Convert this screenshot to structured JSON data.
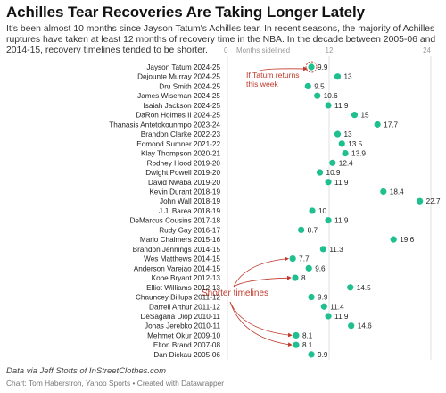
{
  "header": {
    "title": "Achilles Tear Recoveries Are Taking Longer Lately",
    "subtitle": "It's been almost 10 months since Jayson Tatum's Achilles tear. In recent seasons, the majority of Achilles ruptures have taken at least 12 months of recovery time in the NBA. In the decade between 2005-06 and 2014-15, recovery timelines tended to be shorter."
  },
  "footer": {
    "source": "Data via Jeff Stotts of InStreetClothes.com",
    "credit": "Chart: Tom Haberstroh, Yahoo Sports • Created with Datawrapper"
  },
  "colors": {
    "dot": "#1fbf8f",
    "annotation": "#c0392b",
    "grid": "#e2e2e2"
  },
  "annotations": {
    "tatum_line1": "If Tatum returns",
    "tatum_line2": "this week",
    "shorter": "Shorter timelines"
  },
  "chart_data": {
    "type": "scatter",
    "title": "Achilles Tear Recoveries Are Taking Longer Lately",
    "xlabel": "Months sidelined",
    "xlim": [
      0,
      24
    ],
    "xticks": [
      0,
      12,
      24
    ],
    "grid": true,
    "categories": [
      "Jayson Tatum 2024-25",
      "Dejounte Murray 2024-25",
      "Dru Smith 2024-25",
      "James Wiseman 2024-25",
      "Isaiah Jackson 2024-25",
      "DaRon Holmes II 2024-25",
      "Thanasis Antetokounmpo 2023-24",
      "Brandon Clarke 2022-23",
      "Edmond Sumner 2021-22",
      "Klay Thompson 2020-21",
      "Rodney Hood 2019-20",
      "Dwight Powell 2019-20",
      "David Nwaba 2019-20",
      "Kevin Durant 2018-19",
      "John Wall 2018-19",
      "J.J. Barea 2018-19",
      "DeMarcus Cousins 2017-18",
      "Rudy Gay 2016-17",
      "Mario Chalmers 2015-16",
      "Brandon Jennings 2014-15",
      "Wes Matthews 2014-15",
      "Anderson Varejao 2014-15",
      "Kobe Bryant 2012-13",
      "Elliot Williams 2012-13",
      "Chauncey Billups 2011-12",
      "Darrell Arthur 2011-12",
      "DeSagana Diop 2010-11",
      "Jonas Jerebko 2010-11",
      "Mehmet Okur 2009-10",
      "Elton Brand 2007-08",
      "Dan Dickau 2005-06"
    ],
    "values": [
      9.9,
      13,
      9.5,
      10.6,
      11.9,
      15,
      17.7,
      13,
      13.5,
      13.9,
      12.4,
      10.9,
      11.9,
      18.4,
      22.7,
      10,
      11.9,
      8.7,
      19.6,
      11.3,
      7.7,
      9.6,
      8,
      14.5,
      9.9,
      11.4,
      11.9,
      14.6,
      8.1,
      8.1,
      9.9
    ]
  }
}
